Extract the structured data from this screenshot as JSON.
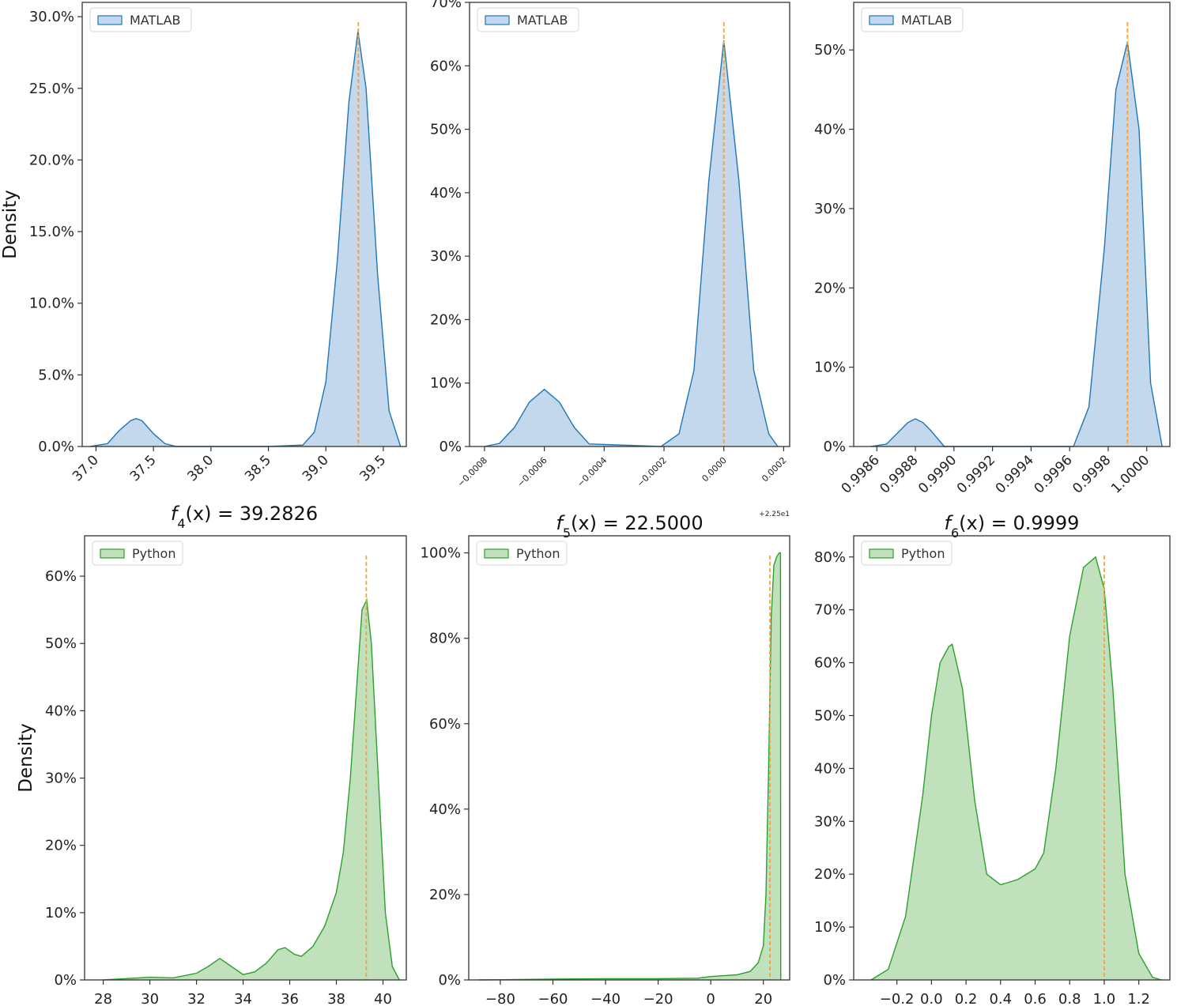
{
  "chart_data": [
    {
      "type": "area",
      "ylabel": "Density",
      "xlabel": "",
      "title_parts": {
        "base": "f",
        "sub": "4",
        "rest": "(x) = 39.2826"
      },
      "title": "f4(x) = 39.2826",
      "xlim": [
        36.88,
        39.7
      ],
      "ylim": [
        0,
        0.31
      ],
      "xticks": [
        37.0,
        37.5,
        38.0,
        38.5,
        39.0,
        39.5
      ],
      "xtick_labels": [
        "37.0",
        "37.5",
        "38.0",
        "38.5",
        "39.0",
        "39.5"
      ],
      "yticks": [
        0,
        0.05,
        0.1,
        0.15,
        0.2,
        0.25,
        0.3
      ],
      "ytick_labels": [
        "0.0%",
        "5.0%",
        "10.0%",
        "15.0%",
        "20.0%",
        "25.0%",
        "30.0%"
      ],
      "reference_line_x": 39.2826,
      "series": [
        {
          "name": "MATLAB",
          "color": "#1f77b4",
          "x": [
            36.95,
            37.1,
            37.2,
            37.3,
            37.35,
            37.4,
            37.5,
            37.6,
            37.7,
            38.5,
            38.8,
            38.9,
            39.0,
            39.1,
            39.2,
            39.28,
            39.35,
            39.45,
            39.55,
            39.65
          ],
          "y": [
            0.0,
            0.002,
            0.011,
            0.018,
            0.0195,
            0.018,
            0.009,
            0.002,
            0.0,
            0.0,
            0.001,
            0.01,
            0.045,
            0.13,
            0.24,
            0.29,
            0.25,
            0.12,
            0.025,
            0.0
          ]
        }
      ],
      "legend": "upper-left"
    },
    {
      "type": "area",
      "ylabel": "",
      "xlabel": "",
      "title_parts": {
        "base": "f",
        "sub": "5",
        "rest": "(x) = 22.5000"
      },
      "title": "f5(x) = 22.5000",
      "xlim": [
        -0.00085,
        0.00022
      ],
      "ylim": [
        0,
        0.7
      ],
      "xticks": [
        -0.0008,
        -0.0006,
        -0.0004,
        -0.0002,
        0.0,
        0.0002
      ],
      "xtick_labels": [
        "−0.0008",
        "−0.0006",
        "−0.0004",
        "−0.0002",
        "0.0000",
        "0.0002"
      ],
      "x_offset_label": "+2.25e1",
      "yticks": [
        0,
        0.1,
        0.2,
        0.3,
        0.4,
        0.5,
        0.6,
        0.7
      ],
      "ytick_labels": [
        "0%",
        "10%",
        "20%",
        "30%",
        "40%",
        "50%",
        "60%",
        "70%"
      ],
      "reference_line_x": 0.0,
      "series": [
        {
          "name": "MATLAB",
          "color": "#1f77b4",
          "x": [
            -0.0008,
            -0.00075,
            -0.0007,
            -0.00065,
            -0.0006,
            -0.00055,
            -0.0005,
            -0.00045,
            -0.00021,
            -0.00015,
            -0.0001,
            -5e-05,
            0.0,
            5e-05,
            0.0001,
            0.00015,
            0.00018
          ],
          "y": [
            0.0,
            0.005,
            0.03,
            0.07,
            0.09,
            0.07,
            0.03,
            0.004,
            0.0,
            0.02,
            0.12,
            0.42,
            0.64,
            0.42,
            0.12,
            0.02,
            0.0
          ]
        }
      ],
      "legend": "upper-left"
    },
    {
      "type": "area",
      "ylabel": "",
      "xlabel": "",
      "title_parts": {
        "base": "f",
        "sub": "6",
        "rest": "(x) = 0.9999"
      },
      "title": "f6(x) = 0.9999",
      "xlim": [
        0.99848,
        1.00012
      ],
      "ylim": [
        0,
        0.56
      ],
      "xticks": [
        0.9986,
        0.9988,
        0.999,
        0.9992,
        0.9994,
        0.9996,
        0.9998,
        1.0
      ],
      "xtick_labels": [
        "0.9986",
        "0.9988",
        "0.9990",
        "0.9992",
        "0.9994",
        "0.9996",
        "0.9998",
        "1.0000"
      ],
      "yticks": [
        0,
        0.1,
        0.2,
        0.3,
        0.4,
        0.5
      ],
      "ytick_labels": [
        "0%",
        "10%",
        "20%",
        "30%",
        "40%",
        "50%"
      ],
      "reference_line_x": 0.9999,
      "series": [
        {
          "name": "MATLAB",
          "color": "#1f77b4",
          "x": [
            0.99857,
            0.99865,
            0.99872,
            0.99876,
            0.9988,
            0.99884,
            0.99888,
            0.99895,
            0.99962,
            0.9997,
            0.99978,
            0.99984,
            0.9999,
            0.99996,
            1.00002,
            1.00008
          ],
          "y": [
            0.0,
            0.003,
            0.02,
            0.03,
            0.035,
            0.03,
            0.02,
            0.0,
            0.0,
            0.05,
            0.25,
            0.45,
            0.51,
            0.4,
            0.08,
            0.0
          ]
        }
      ],
      "legend": "upper-left"
    },
    {
      "type": "area",
      "ylabel": "Density",
      "xlabel": "",
      "xlim": [
        27.2,
        41.0
      ],
      "ylim": [
        0,
        0.66
      ],
      "xticks": [
        28,
        30,
        32,
        34,
        36,
        38,
        40
      ],
      "xtick_labels": [
        "28",
        "30",
        "32",
        "34",
        "36",
        "38",
        "40"
      ],
      "yticks": [
        0,
        0.1,
        0.2,
        0.3,
        0.4,
        0.5,
        0.6
      ],
      "ytick_labels": [
        "0%",
        "10%",
        "20%",
        "30%",
        "40%",
        "50%",
        "60%"
      ],
      "reference_line_x": 39.2826,
      "series": [
        {
          "name": "Python",
          "color": "#2ca02c",
          "x": [
            28.0,
            29.0,
            30.0,
            31.0,
            32.0,
            32.5,
            33.0,
            33.5,
            34.0,
            34.5,
            35.0,
            35.5,
            35.8,
            36.2,
            36.5,
            37.0,
            37.5,
            38.0,
            38.3,
            38.6,
            38.9,
            39.1,
            39.3,
            39.5,
            39.8,
            40.1,
            40.4,
            40.7
          ],
          "y": [
            0.0,
            0.002,
            0.004,
            0.003,
            0.01,
            0.02,
            0.032,
            0.02,
            0.008,
            0.012,
            0.025,
            0.045,
            0.048,
            0.038,
            0.035,
            0.05,
            0.08,
            0.13,
            0.19,
            0.3,
            0.45,
            0.55,
            0.565,
            0.5,
            0.3,
            0.1,
            0.02,
            0.0
          ]
        }
      ],
      "legend": "upper-left"
    },
    {
      "type": "area",
      "ylabel": "",
      "xlabel": "",
      "xlim": [
        -92,
        30
      ],
      "ylim": [
        0,
        1.04
      ],
      "xticks": [
        -80,
        -60,
        -40,
        -20,
        0,
        20
      ],
      "xtick_labels": [
        "−80",
        "−60",
        "−40",
        "−20",
        "0",
        "20"
      ],
      "yticks": [
        0,
        0.2,
        0.4,
        0.6,
        0.8,
        1.0
      ],
      "ytick_labels": [
        "0%",
        "20%",
        "40%",
        "60%",
        "80%",
        "100%"
      ],
      "reference_line_x": 22.5,
      "series": [
        {
          "name": "Python",
          "color": "#2ca02c",
          "x": [
            -88,
            -60,
            -40,
            -20,
            -5,
            0,
            5,
            10,
            15,
            18,
            20,
            21,
            22,
            23,
            24,
            25,
            26,
            26.5,
            26.6
          ],
          "y": [
            0.0,
            0.002,
            0.003,
            0.003,
            0.004,
            0.008,
            0.01,
            0.012,
            0.02,
            0.04,
            0.08,
            0.2,
            0.5,
            0.85,
            0.97,
            0.99,
            1.0,
            1.0,
            0.0
          ]
        }
      ],
      "legend": "upper-left"
    },
    {
      "type": "area",
      "ylabel": "",
      "xlabel": "",
      "xlim": [
        -0.45,
        1.38
      ],
      "ylim": [
        0,
        0.84
      ],
      "xticks": [
        -0.2,
        0.0,
        0.2,
        0.4,
        0.6,
        0.8,
        1.0,
        1.2
      ],
      "xtick_labels": [
        "−0.2",
        "0.0",
        "0.2",
        "0.4",
        "0.6",
        "0.8",
        "1.0",
        "1.2"
      ],
      "yticks": [
        0,
        0.1,
        0.2,
        0.3,
        0.4,
        0.5,
        0.6,
        0.7,
        0.8
      ],
      "ytick_labels": [
        "0%",
        "10%",
        "20%",
        "30%",
        "40%",
        "50%",
        "60%",
        "70%",
        "80%"
      ],
      "reference_line_x": 1.0,
      "series": [
        {
          "name": "Python",
          "color": "#2ca02c",
          "x": [
            -0.35,
            -0.25,
            -0.15,
            -0.05,
            0.0,
            0.05,
            0.1,
            0.12,
            0.18,
            0.25,
            0.32,
            0.4,
            0.5,
            0.6,
            0.65,
            0.72,
            0.8,
            0.88,
            0.95,
            1.0,
            1.05,
            1.12,
            1.2,
            1.28,
            1.33
          ],
          "y": [
            0.0,
            0.02,
            0.12,
            0.35,
            0.5,
            0.6,
            0.63,
            0.635,
            0.55,
            0.34,
            0.2,
            0.18,
            0.19,
            0.21,
            0.24,
            0.4,
            0.65,
            0.78,
            0.8,
            0.74,
            0.55,
            0.2,
            0.05,
            0.005,
            0.0
          ]
        }
      ],
      "legend": "upper-left"
    }
  ]
}
